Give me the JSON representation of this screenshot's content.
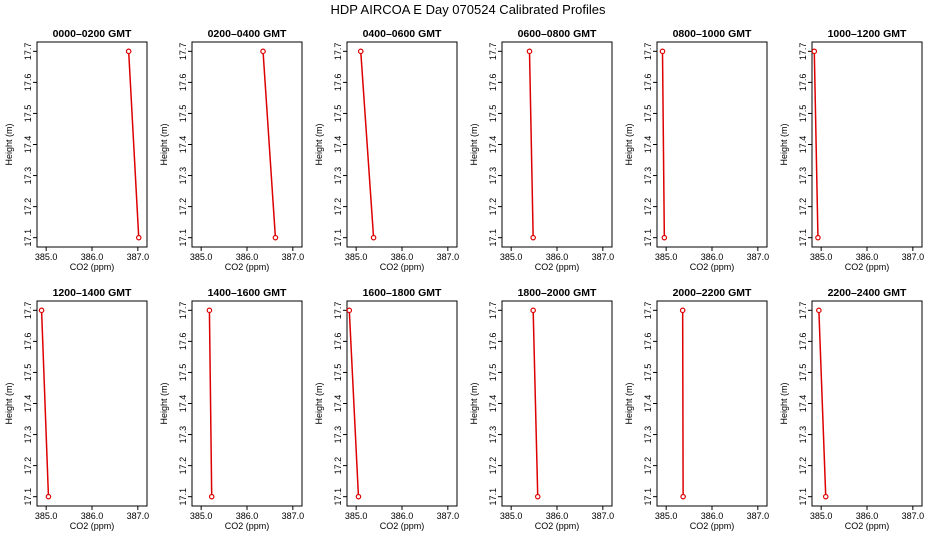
{
  "title": "HDP  AIRCOA E  Day 070524  Calibrated Profiles",
  "chart_data": {
    "type": "line",
    "xlabel": "CO2 (ppm)",
    "ylabel": "Height (m)",
    "xlim": [
      384.8,
      387.2
    ],
    "ylim": [
      17.07,
      17.73
    ],
    "xticks": [
      385.0,
      386.0,
      387.0
    ],
    "xtick_labels": [
      "385.0",
      "386.0",
      "387.0"
    ],
    "yticks": [
      17.1,
      17.2,
      17.3,
      17.4,
      17.5,
      17.6,
      17.7
    ],
    "ytick_labels": [
      "17.1",
      "17.2",
      "17.3",
      "17.4",
      "17.5",
      "17.6",
      "17.7"
    ],
    "series_color": "#dd0000",
    "panels": [
      {
        "title": "0000–0200 GMT",
        "x": [
          386.8,
          387.02
        ],
        "y": [
          17.7,
          17.1
        ]
      },
      {
        "title": "0200–0400 GMT",
        "x": [
          386.35,
          386.62
        ],
        "y": [
          17.7,
          17.1
        ]
      },
      {
        "title": "0400–0600 GMT",
        "x": [
          385.1,
          385.38
        ],
        "y": [
          17.7,
          17.1
        ]
      },
      {
        "title": "0600–0800 GMT",
        "x": [
          385.4,
          385.48
        ],
        "y": [
          17.7,
          17.1
        ]
      },
      {
        "title": "0800–1000 GMT",
        "x": [
          384.92,
          384.96
        ],
        "y": [
          17.7,
          17.1
        ]
      },
      {
        "title": "1000–1200 GMT",
        "x": [
          384.85,
          384.93
        ],
        "y": [
          17.7,
          17.1
        ]
      },
      {
        "title": "1200–1400 GMT",
        "x": [
          384.9,
          385.05
        ],
        "y": [
          17.7,
          17.1
        ]
      },
      {
        "title": "1400–1600 GMT",
        "x": [
          385.18,
          385.23
        ],
        "y": [
          17.7,
          17.1
        ]
      },
      {
        "title": "1600–1800 GMT",
        "x": [
          384.85,
          385.05
        ],
        "y": [
          17.7,
          17.1
        ]
      },
      {
        "title": "1800–2000 GMT",
        "x": [
          385.48,
          385.58
        ],
        "y": [
          17.7,
          17.1
        ]
      },
      {
        "title": "2000–2200 GMT",
        "x": [
          385.36,
          385.37
        ],
        "y": [
          17.7,
          17.1
        ]
      },
      {
        "title": "2200–2400 GMT",
        "x": [
          384.95,
          385.1
        ],
        "y": [
          17.7,
          17.1
        ]
      }
    ]
  }
}
